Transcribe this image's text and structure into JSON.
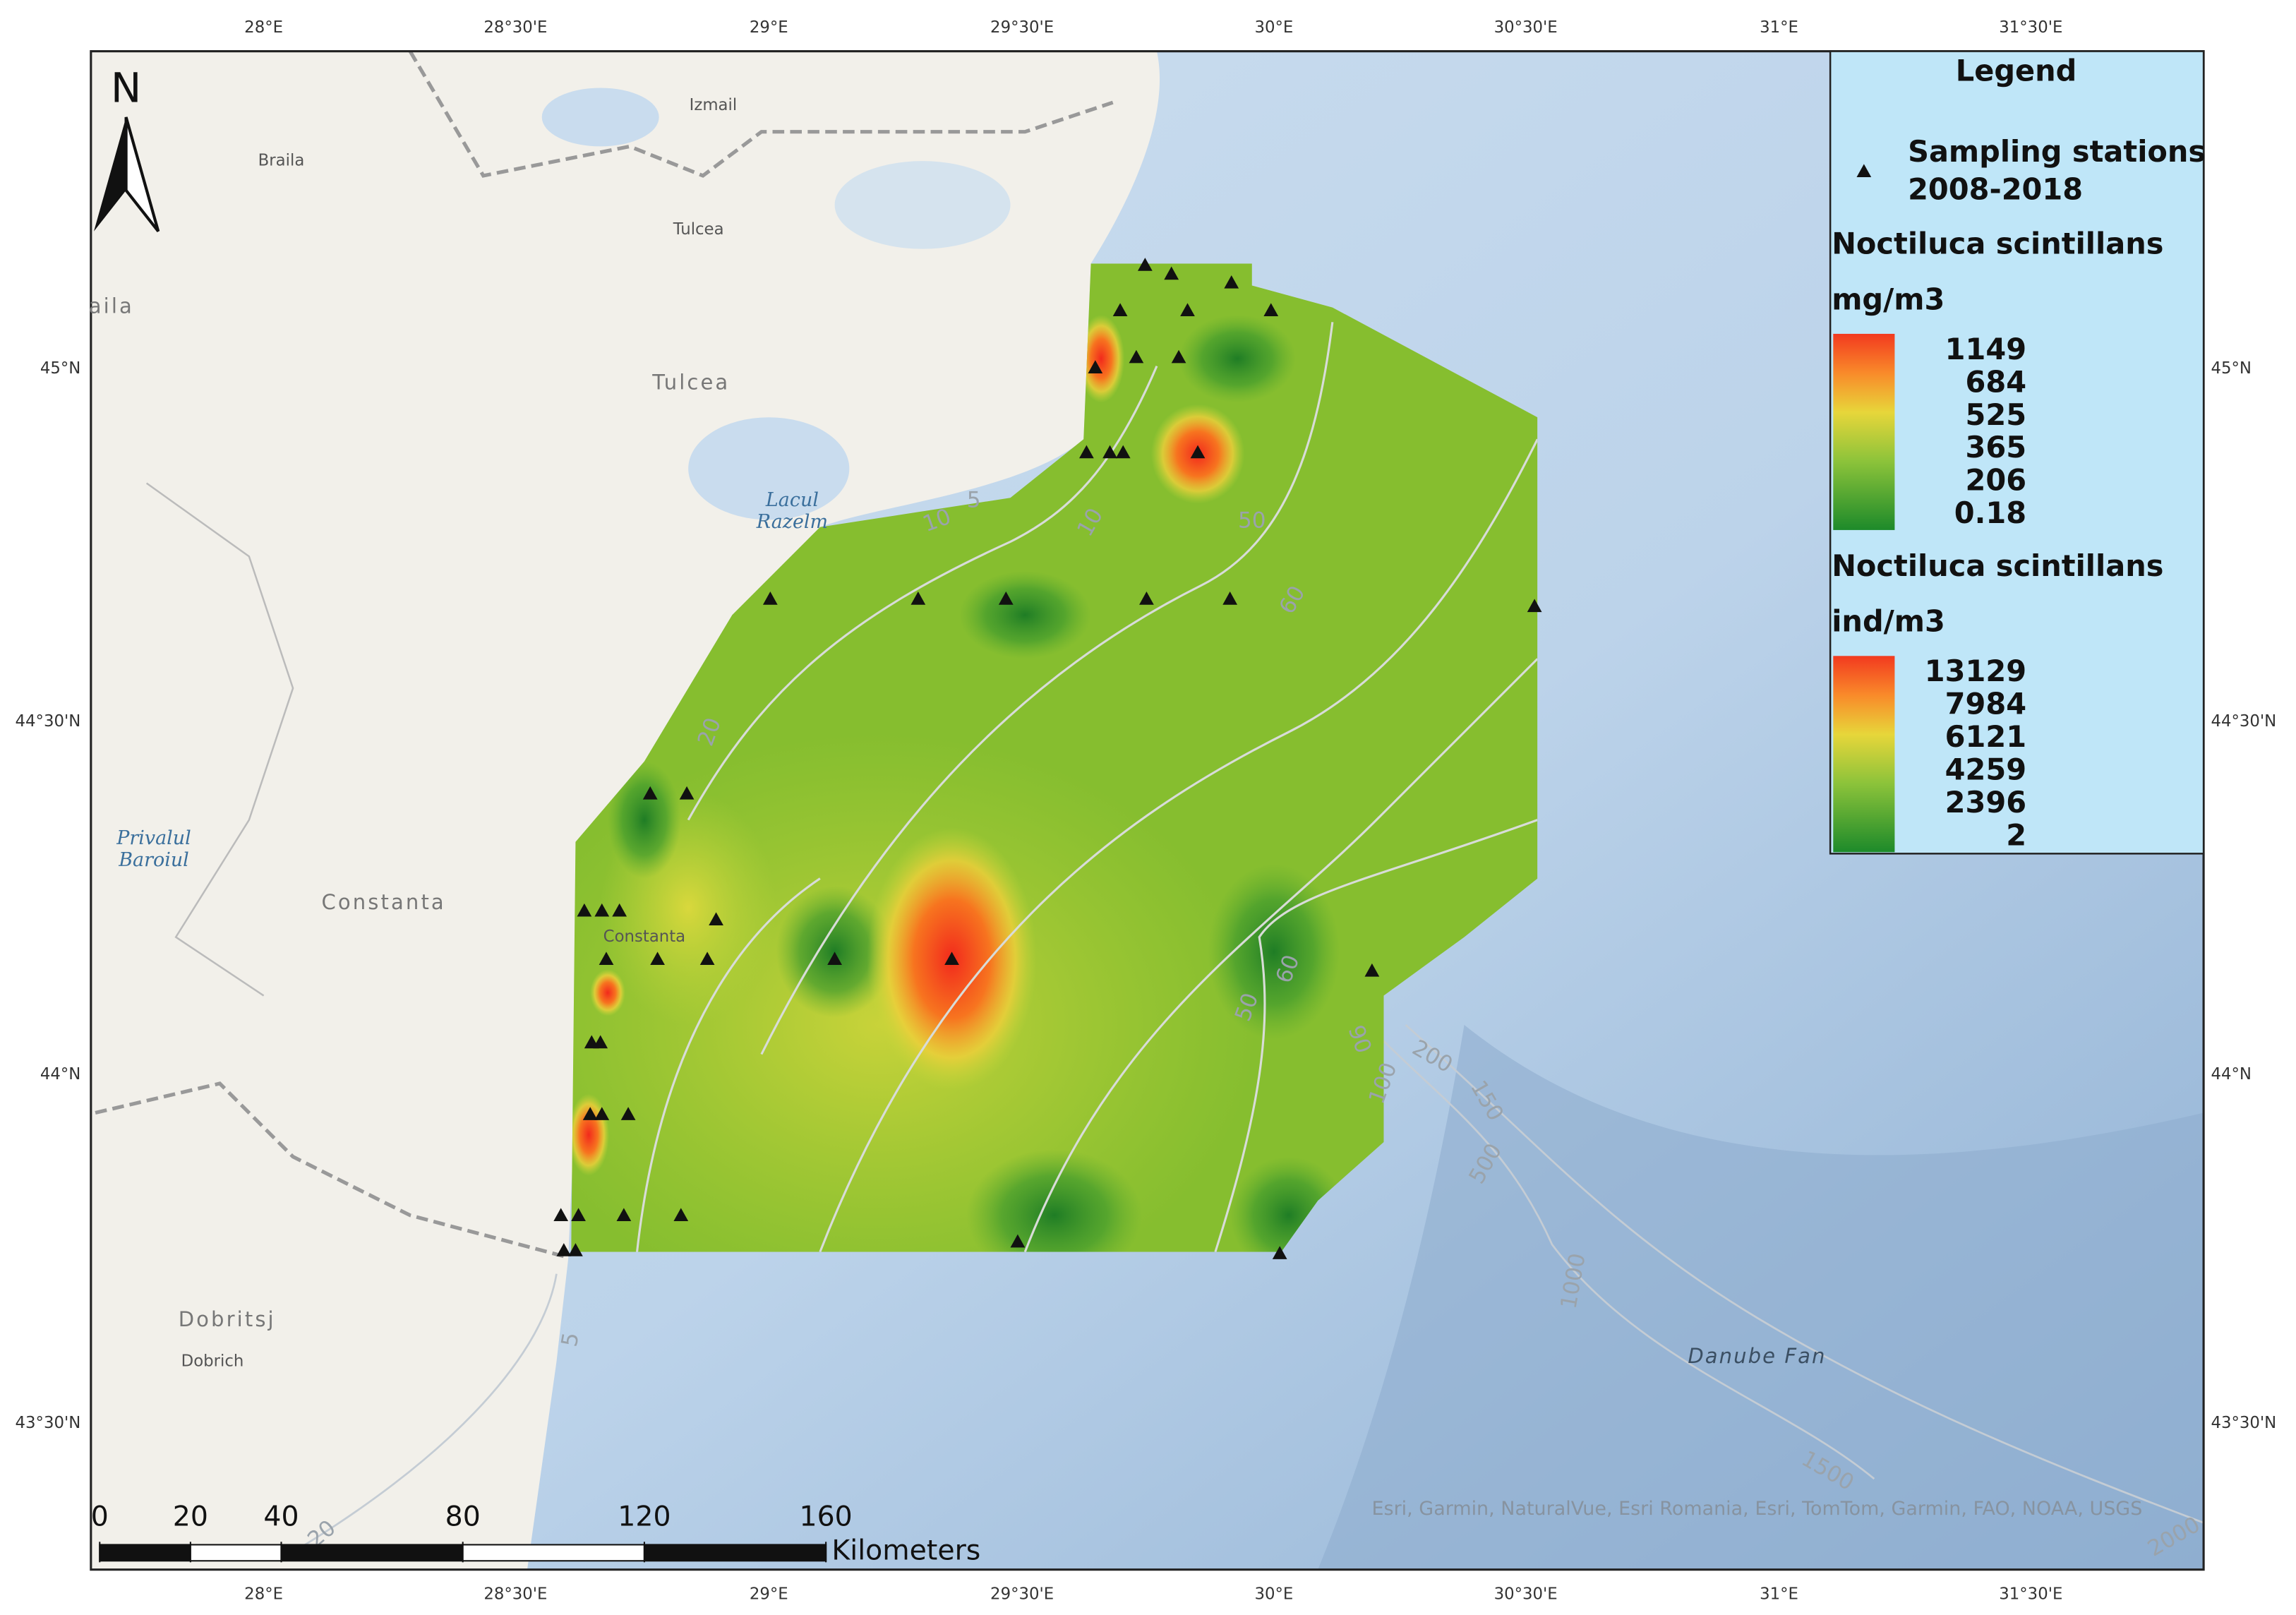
{
  "map": {
    "longitude_labels": [
      "28°E",
      "28°30'E",
      "29°E",
      "29°30'E",
      "30°E",
      "30°30'E",
      "31°E",
      "31°30'E"
    ],
    "latitude_labels": [
      "45°N",
      "44°30'N",
      "44°N",
      "43°30'N"
    ],
    "north_arrow": "N",
    "place_labels": [
      "Izmail",
      "Braila",
      "Tulcea",
      "aila",
      "Tulcea",
      "Constanta",
      "Constanta",
      "Dobritsj",
      "Dobrich"
    ],
    "water_labels": [
      "Lacul",
      "Razelm",
      "Privalul",
      "Baroiul",
      "Danube Fan"
    ],
    "contour_labels": [
      "5",
      "10",
      "10",
      "50",
      "60",
      "20",
      "60",
      "50",
      "90",
      "100",
      "200",
      "150",
      "500",
      "1000",
      "1500",
      "2000",
      "5",
      "20"
    ],
    "attribution": "Esri, Garmin, NaturalVue, Esri Romania, Esri, TomTom, Garmin, FAO, NOAA, USGS",
    "scale_bar": {
      "ticks": [
        0,
        20,
        40,
        80,
        120,
        160
      ],
      "unit": "Kilometers"
    }
  },
  "legend": {
    "title": "Legend",
    "stations": [
      "Sampling stations",
      "2008-2018"
    ],
    "biomass": {
      "title": "Noctiluca scintillans",
      "unit": "mg/m3",
      "values": [
        1149,
        684,
        525,
        365,
        206,
        0.18
      ]
    },
    "abundance": {
      "title": "Noctiluca scintillans",
      "unit": "ind/m3",
      "values": [
        13129,
        7984,
        6121,
        4259,
        2396,
        2
      ]
    }
  }
}
